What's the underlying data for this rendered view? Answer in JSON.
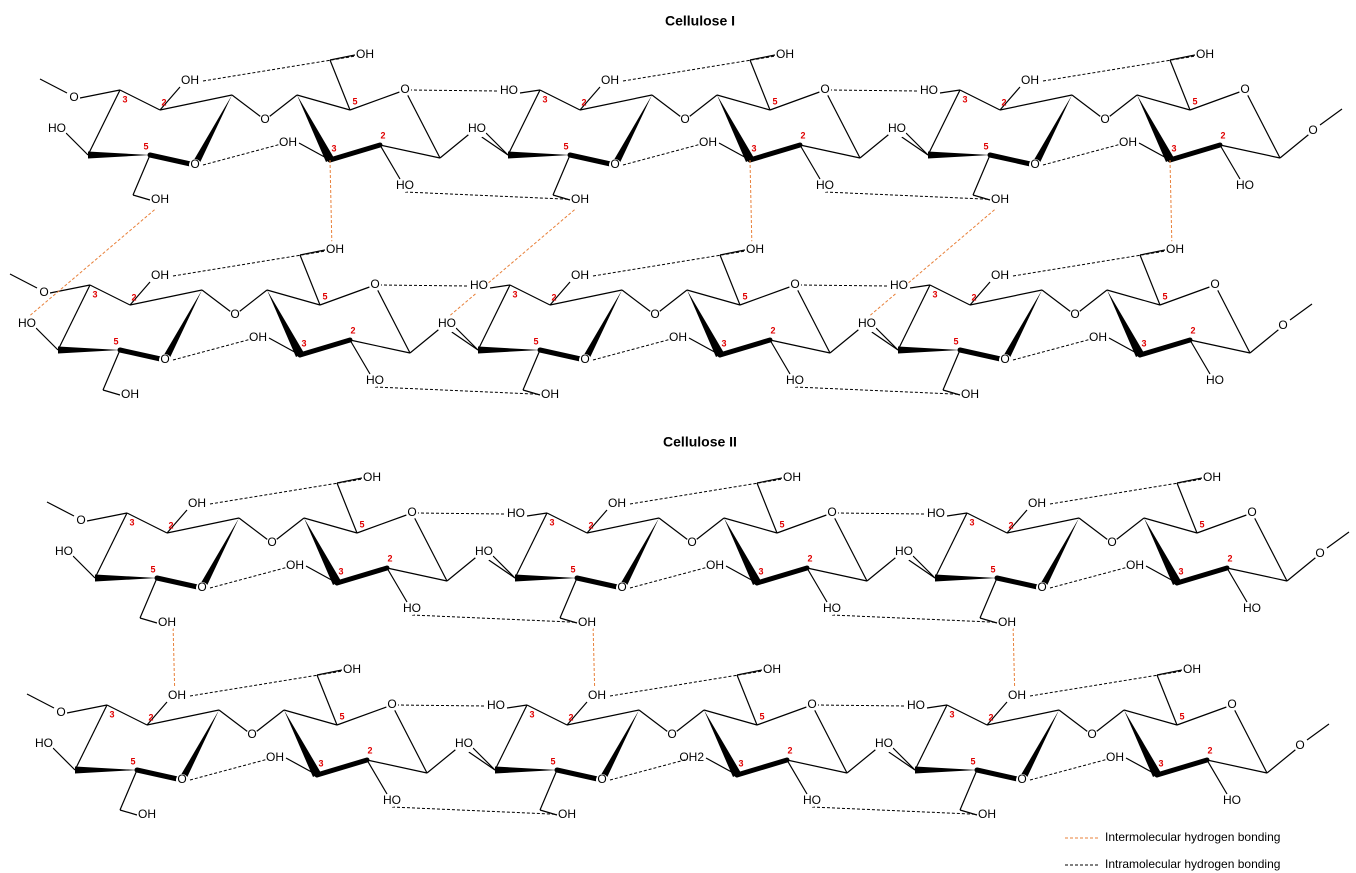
{
  "panels": [
    {
      "title": "Cellulose I"
    },
    {
      "title": "Cellulose II"
    }
  ],
  "labels": {
    "oxygen": "O",
    "hydroxyl": "OH",
    "hydroxyl_left": "HO",
    "hydroxyl_water": "OH2",
    "carbons": [
      "2",
      "3",
      "5"
    ]
  },
  "legend": [
    {
      "label": "Intermolecular hydrogen bonding",
      "color": "#e8803a"
    },
    {
      "label": "Intramolecular hydrogen bonding",
      "color": "#000000"
    }
  ]
}
